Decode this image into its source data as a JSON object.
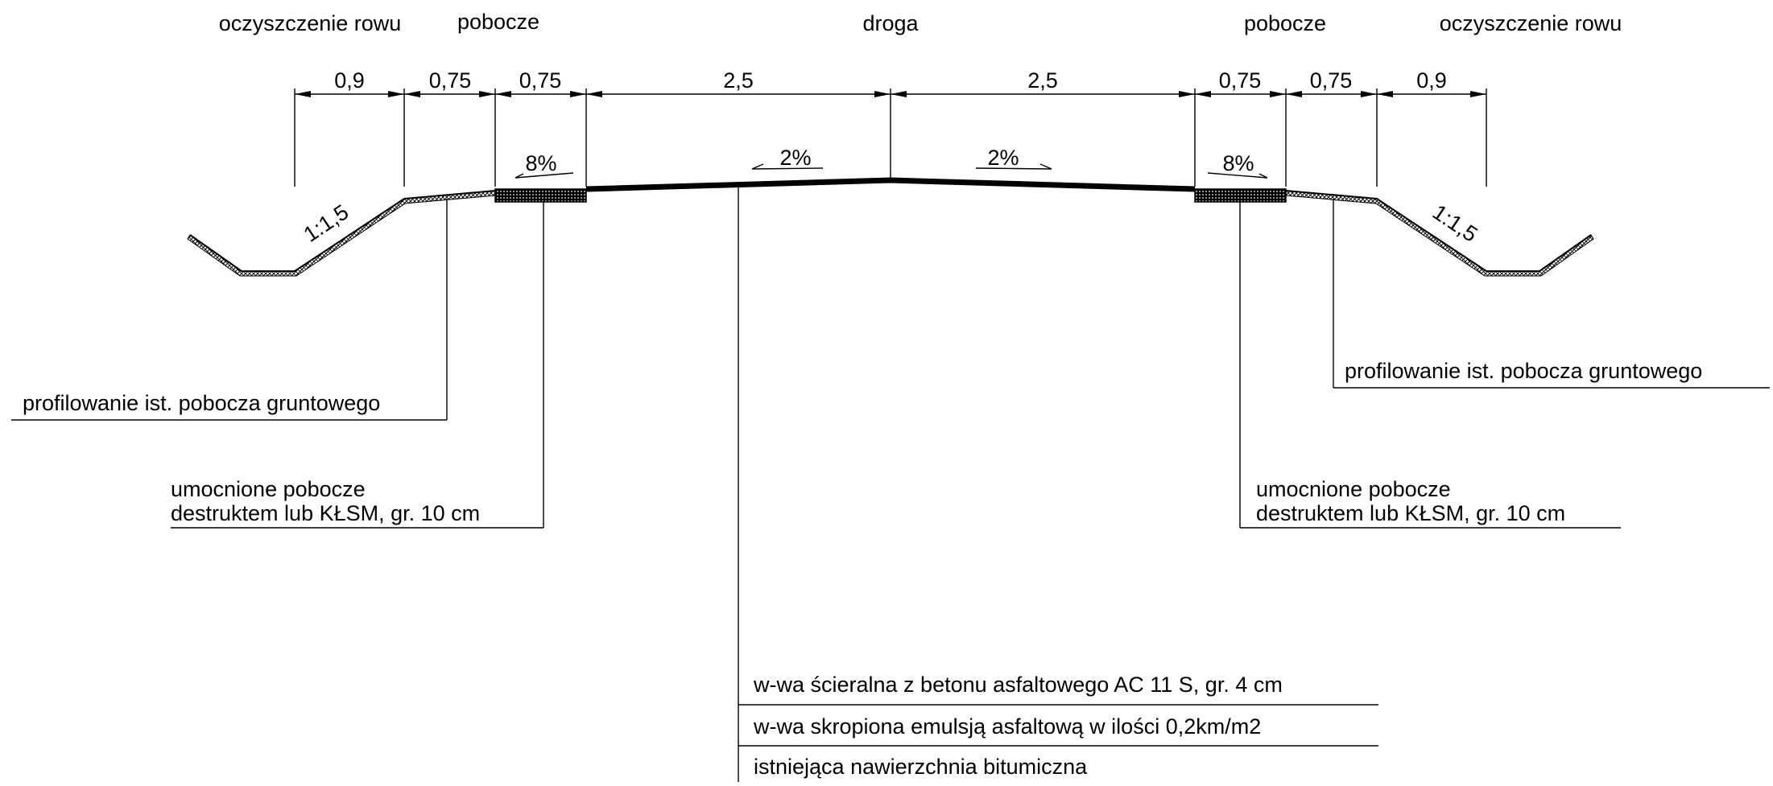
{
  "headers": {
    "ditch_left": "oczyszczenie rowu",
    "shoulder_left": "pobocze",
    "road": "droga",
    "shoulder_right": "pobocze",
    "ditch_right": "oczyszczenie rowu"
  },
  "dimensions": [
    "0,9",
    "0,75",
    "0,75",
    "2,5",
    "2,5",
    "0,75",
    "0,75",
    "0,9"
  ],
  "slopes": {
    "shoulder_left": "8%",
    "road_left": "2%",
    "road_right": "2%",
    "shoulder_right": "8%",
    "embankment_left": "1:1,5",
    "embankment_right": "1:1,5"
  },
  "callouts": {
    "profile_left": "profilowanie ist. pobocza gruntowego",
    "profile_right": "profilowanie ist. pobocza gruntowego",
    "reinforced_left_1": "umocnione pobocze",
    "reinforced_left_2": "destruktem lub KŁSM, gr. 10 cm",
    "reinforced_right_1": "umocnione pobocze",
    "reinforced_right_2": "destruktem lub KŁSM, gr. 10 cm"
  },
  "layers": [
    "w-wa ścieralna z betonu asfaltowego AC 11 S, gr. 4 cm",
    "w-wa skropiona emulsją asfaltową w ilości 0,2km/m2",
    "istniejąca nawierzchnia bitumiczna"
  ]
}
